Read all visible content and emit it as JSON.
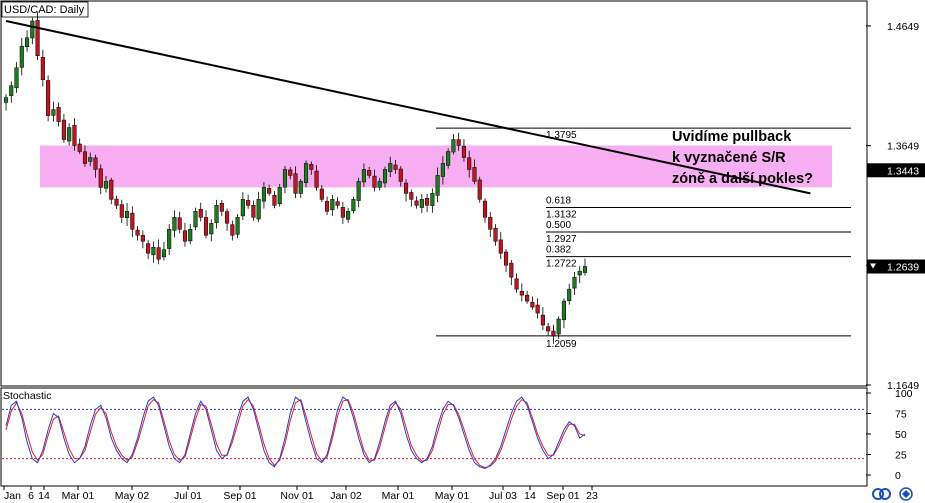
{
  "window_title": "USD/CAD: Daily",
  "annotation": "Uvidíme pullback k vyznačené S/R zóně a další pokles?",
  "colors": {
    "bull": "#1f7a1f",
    "bear": "#c0141e",
    "zone": "#f7aef2",
    "stoch_k": "#2e3cc8",
    "stoch_d": "#e0202a",
    "level": "#000000"
  },
  "price_panel": {
    "ylim": [
      1.1649,
      1.4849
    ],
    "ticks": [
      "1.4649",
      "1.3649",
      "1.2649",
      "1.1649"
    ],
    "tick_values": [
      1.4649,
      1.3649,
      1.2649,
      1.1649
    ],
    "markers": [
      {
        "label": "1.3443",
        "value": 1.3443
      },
      {
        "label": "1.2639",
        "value": 1.2639
      }
    ]
  },
  "oscillator": {
    "title": "Stochastic",
    "ticks": [
      "100",
      "75",
      "50",
      "25",
      "0"
    ],
    "tick_values": [
      100,
      75,
      50,
      25,
      0
    ],
    "levels": [
      80,
      20
    ]
  },
  "x_ticks": [
    "Jan",
    "6",
    "14",
    "Mar 01",
    "May 02",
    "Jul 01",
    "Sep 01",
    "Nov 01",
    "Jan 02",
    "Mar 01",
    "May 01",
    "Jul 03",
    "14",
    "Sep 01",
    "23"
  ],
  "chart_data": {
    "type": "candlestick",
    "title": "USD/CAD: Daily",
    "xlabel": "",
    "ylabel": "",
    "ylim": [
      1.1649,
      1.4849
    ],
    "series": [
      {
        "name": "",
        "values": [
          1.405,
          1.415,
          1.43,
          1.448,
          1.455,
          1.469,
          1.44,
          1.42,
          1.39,
          1.395,
          1.385,
          1.37,
          1.38,
          1.365,
          1.36,
          1.35,
          1.355,
          1.345,
          1.33,
          1.335,
          1.32,
          1.315,
          1.305,
          1.31,
          1.295,
          1.29,
          1.285,
          1.275,
          1.28,
          1.27,
          1.278,
          1.295,
          1.305,
          1.295,
          1.285,
          1.295,
          1.31,
          1.305,
          1.29,
          1.3,
          1.315,
          1.31,
          1.3,
          1.29,
          1.305,
          1.32,
          1.315,
          1.305,
          1.32,
          1.33,
          1.325,
          1.315,
          1.33,
          1.345,
          1.34,
          1.325,
          1.335,
          1.35,
          1.345,
          1.33,
          1.32,
          1.31,
          1.32,
          1.315,
          1.305,
          1.31,
          1.32,
          1.335,
          1.345,
          1.34,
          1.33,
          1.335,
          1.345,
          1.35,
          1.345,
          1.335,
          1.325,
          1.32,
          1.315,
          1.32,
          1.315,
          1.325,
          1.34,
          1.35,
          1.36,
          1.37,
          1.365,
          1.355,
          1.345,
          1.335,
          1.32,
          1.305,
          1.295,
          1.285,
          1.275,
          1.265,
          1.255,
          1.245,
          1.24,
          1.235,
          1.23,
          1.225,
          1.215,
          1.21,
          1.2059,
          1.22,
          1.235,
          1.245,
          1.255,
          1.26,
          1.2639
        ]
      }
    ],
    "trendline": {
      "from": [
        0,
        1.469
      ],
      "to": [
        108,
        1.325
      ]
    },
    "sr_zone": [
      1.33,
      1.365
    ],
    "fibonacci": {
      "high": {
        "label": "1.3795",
        "value": 1.3795
      },
      "low": {
        "label": "1.2059",
        "value": 1.2059
      },
      "levels": [
        {
          "ratio": "0.618",
          "price": "1.3132",
          "value": 1.3132
        },
        {
          "ratio": "0.500",
          "price": "1.2927",
          "value": 1.2927
        },
        {
          "ratio": "0.382",
          "price": "1.2722",
          "value": 1.2722
        }
      ]
    },
    "stochastic": {
      "k": [
        60,
        85,
        90,
        70,
        40,
        20,
        15,
        30,
        55,
        75,
        70,
        45,
        25,
        15,
        20,
        35,
        60,
        80,
        85,
        70,
        45,
        30,
        20,
        15,
        25,
        45,
        70,
        90,
        95,
        85,
        60,
        35,
        20,
        15,
        25,
        50,
        75,
        90,
        80,
        55,
        30,
        20,
        25,
        45,
        70,
        90,
        95,
        80,
        55,
        30,
        15,
        10,
        20,
        45,
        75,
        95,
        90,
        65,
        40,
        20,
        15,
        25,
        50,
        80,
        95,
        90,
        70,
        45,
        25,
        15,
        20,
        40,
        65,
        85,
        90,
        75,
        50,
        30,
        20,
        15,
        20,
        35,
        60,
        80,
        90,
        85,
        70,
        50,
        30,
        15,
        10,
        8,
        12,
        20,
        35,
        55,
        75,
        90,
        95,
        85,
        65,
        45,
        30,
        20,
        25,
        40,
        55,
        65,
        60,
        45,
        50
      ],
      "d": [
        55,
        78,
        88,
        75,
        50,
        28,
        18,
        25,
        48,
        68,
        72,
        52,
        32,
        20,
        20,
        30,
        52,
        74,
        82,
        75,
        52,
        35,
        24,
        18,
        22,
        40,
        62,
        84,
        92,
        88,
        66,
        42,
        25,
        18,
        22,
        44,
        68,
        86,
        84,
        62,
        38,
        24,
        24,
        40,
        62,
        84,
        92,
        84,
        62,
        38,
        20,
        12,
        18,
        38,
        66,
        88,
        92,
        72,
        48,
        26,
        17,
        22,
        44,
        72,
        90,
        92,
        76,
        52,
        30,
        18,
        18,
        34,
        58,
        80,
        88,
        80,
        58,
        36,
        24,
        17,
        18,
        30,
        52,
        74,
        86,
        86,
        74,
        56,
        36,
        20,
        12,
        9,
        11,
        17,
        30,
        48,
        68,
        84,
        92,
        88,
        70,
        50,
        35,
        24,
        24,
        35,
        50,
        62,
        62,
        50,
        48
      ]
    }
  }
}
